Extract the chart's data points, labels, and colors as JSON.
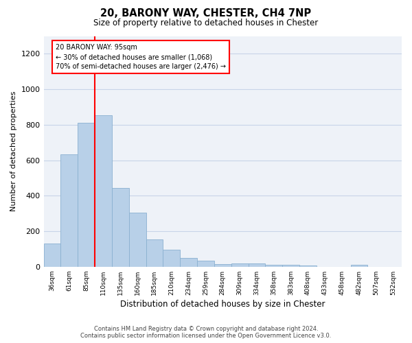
{
  "title_line1": "20, BARONY WAY, CHESTER, CH4 7NP",
  "title_line2": "Size of property relative to detached houses in Chester",
  "xlabel": "Distribution of detached houses by size in Chester",
  "ylabel": "Number of detached properties",
  "bar_color": "#b8d0e8",
  "bar_edgecolor": "#8ab0d0",
  "bar_linewidth": 0.6,
  "categories": [
    "36sqm",
    "61sqm",
    "85sqm",
    "110sqm",
    "135sqm",
    "160sqm",
    "185sqm",
    "210sqm",
    "234sqm",
    "259sqm",
    "284sqm",
    "309sqm",
    "334sqm",
    "358sqm",
    "383sqm",
    "408sqm",
    "433sqm",
    "458sqm",
    "482sqm",
    "507sqm",
    "532sqm"
  ],
  "values": [
    130,
    635,
    810,
    855,
    445,
    305,
    155,
    95,
    50,
    35,
    15,
    20,
    17,
    10,
    10,
    8,
    1,
    1,
    10,
    1,
    1
  ],
  "ylim": [
    0,
    1300
  ],
  "yticks": [
    0,
    200,
    400,
    600,
    800,
    1000,
    1200
  ],
  "red_line_x": 2.5,
  "annotation_title": "20 BARONY WAY: 95sqm",
  "annotation_line1": "← 30% of detached houses are smaller (1,068)",
  "annotation_line2": "70% of semi-detached houses are larger (2,476) →",
  "footer_line1": "Contains HM Land Registry data © Crown copyright and database right 2024.",
  "footer_line2": "Contains public sector information licensed under the Open Government Licence v3.0.",
  "grid_color": "#c8d4e8",
  "plot_bg_color": "#eef2f8"
}
